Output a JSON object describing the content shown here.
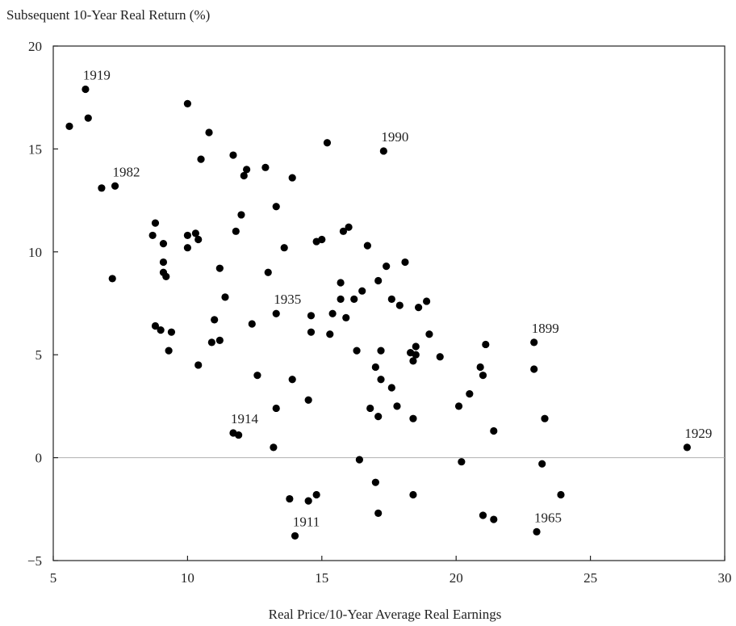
{
  "chart_data": {
    "type": "scatter",
    "title": "",
    "ylabel": "Subsequent 10-Year Real Return (%)",
    "xlabel": "Real Price/10-Year Average Real Earnings",
    "xlim": [
      5,
      30
    ],
    "ylim": [
      -5,
      20
    ],
    "xticks": [
      "5",
      "10",
      "15",
      "20",
      "25",
      "30"
    ],
    "yticks": [
      "20",
      "15",
      "10",
      "5",
      "0",
      "−5"
    ],
    "grid": false,
    "zero_line": true,
    "colors": {
      "points": "#000000",
      "axis": "#222222",
      "zero_line": "#b0b0b0"
    },
    "points": [
      [
        5.6,
        16.1
      ],
      [
        6.2,
        17.9
      ],
      [
        6.3,
        16.5
      ],
      [
        6.8,
        13.1
      ],
      [
        7.2,
        8.7
      ],
      [
        7.3,
        13.2
      ],
      [
        8.7,
        10.8
      ],
      [
        8.8,
        11.4
      ],
      [
        8.8,
        6.4
      ],
      [
        9.0,
        6.2
      ],
      [
        9.1,
        10.4
      ],
      [
        9.1,
        9.5
      ],
      [
        9.1,
        9.0
      ],
      [
        9.2,
        8.8
      ],
      [
        9.3,
        5.2
      ],
      [
        9.4,
        6.1
      ],
      [
        10.0,
        17.2
      ],
      [
        10.0,
        10.8
      ],
      [
        10.0,
        10.2
      ],
      [
        10.3,
        10.9
      ],
      [
        10.4,
        10.6
      ],
      [
        10.4,
        4.5
      ],
      [
        10.5,
        14.5
      ],
      [
        10.8,
        15.8
      ],
      [
        10.9,
        5.6
      ],
      [
        11.0,
        6.7
      ],
      [
        11.2,
        9.2
      ],
      [
        11.2,
        5.7
      ],
      [
        11.4,
        7.8
      ],
      [
        11.7,
        14.7
      ],
      [
        11.7,
        1.2
      ],
      [
        11.8,
        11.0
      ],
      [
        11.9,
        1.1
      ],
      [
        12.0,
        11.8
      ],
      [
        12.1,
        13.7
      ],
      [
        12.2,
        14.0
      ],
      [
        12.4,
        6.5
      ],
      [
        12.6,
        4.0
      ],
      [
        12.9,
        14.1
      ],
      [
        13.0,
        9.0
      ],
      [
        13.2,
        0.5
      ],
      [
        13.3,
        12.2
      ],
      [
        13.3,
        7.0
      ],
      [
        13.3,
        2.4
      ],
      [
        13.6,
        10.2
      ],
      [
        13.8,
        -2.0
      ],
      [
        13.9,
        13.6
      ],
      [
        13.9,
        3.8
      ],
      [
        14.0,
        -3.8
      ],
      [
        14.5,
        -2.1
      ],
      [
        14.5,
        2.8
      ],
      [
        14.6,
        6.9
      ],
      [
        14.6,
        6.1
      ],
      [
        14.8,
        10.5
      ],
      [
        14.8,
        -1.8
      ],
      [
        15.0,
        10.6
      ],
      [
        15.2,
        15.3
      ],
      [
        15.3,
        6.0
      ],
      [
        15.4,
        7.0
      ],
      [
        15.7,
        8.5
      ],
      [
        15.7,
        7.7
      ],
      [
        15.8,
        11.0
      ],
      [
        15.9,
        6.8
      ],
      [
        16.0,
        11.2
      ],
      [
        16.2,
        7.7
      ],
      [
        16.3,
        5.2
      ],
      [
        16.4,
        -0.1
      ],
      [
        16.5,
        8.1
      ],
      [
        16.7,
        10.3
      ],
      [
        16.8,
        2.4
      ],
      [
        17.0,
        4.4
      ],
      [
        17.0,
        -1.2
      ],
      [
        17.1,
        8.6
      ],
      [
        17.1,
        2.0
      ],
      [
        17.1,
        -2.7
      ],
      [
        17.2,
        5.2
      ],
      [
        17.2,
        3.8
      ],
      [
        17.3,
        14.9
      ],
      [
        17.4,
        9.3
      ],
      [
        17.6,
        7.7
      ],
      [
        17.6,
        3.4
      ],
      [
        17.8,
        2.5
      ],
      [
        17.9,
        7.4
      ],
      [
        18.1,
        9.5
      ],
      [
        18.3,
        5.1
      ],
      [
        18.4,
        4.7
      ],
      [
        18.4,
        1.9
      ],
      [
        18.4,
        -1.8
      ],
      [
        18.5,
        5.4
      ],
      [
        18.5,
        5.0
      ],
      [
        18.6,
        7.3
      ],
      [
        18.9,
        7.6
      ],
      [
        19.0,
        6.0
      ],
      [
        19.4,
        4.9
      ],
      [
        20.1,
        2.5
      ],
      [
        20.2,
        -0.2
      ],
      [
        20.5,
        3.1
      ],
      [
        20.9,
        4.4
      ],
      [
        21.0,
        4.0
      ],
      [
        21.0,
        -2.8
      ],
      [
        21.1,
        5.5
      ],
      [
        21.4,
        1.3
      ],
      [
        21.4,
        -3.0
      ],
      [
        22.9,
        5.6
      ],
      [
        22.9,
        4.3
      ],
      [
        23.0,
        -3.6
      ],
      [
        23.2,
        -0.3
      ],
      [
        23.3,
        1.9
      ],
      [
        23.9,
        -1.8
      ],
      [
        28.6,
        0.5
      ]
    ],
    "annotations": [
      {
        "text": "1919",
        "x": 6.2,
        "y": 17.9
      },
      {
        "text": "1982",
        "x": 7.3,
        "y": 13.2
      },
      {
        "text": "1990",
        "x": 17.3,
        "y": 14.9
      },
      {
        "text": "1935",
        "x": 13.3,
        "y": 7.0
      },
      {
        "text": "1899",
        "x": 22.9,
        "y": 5.6
      },
      {
        "text": "1914",
        "x": 11.7,
        "y": 1.2
      },
      {
        "text": "1929",
        "x": 28.6,
        "y": 0.5
      },
      {
        "text": "1911",
        "x": 14.0,
        "y": -3.8
      },
      {
        "text": "1965",
        "x": 23.0,
        "y": -3.6
      }
    ]
  }
}
